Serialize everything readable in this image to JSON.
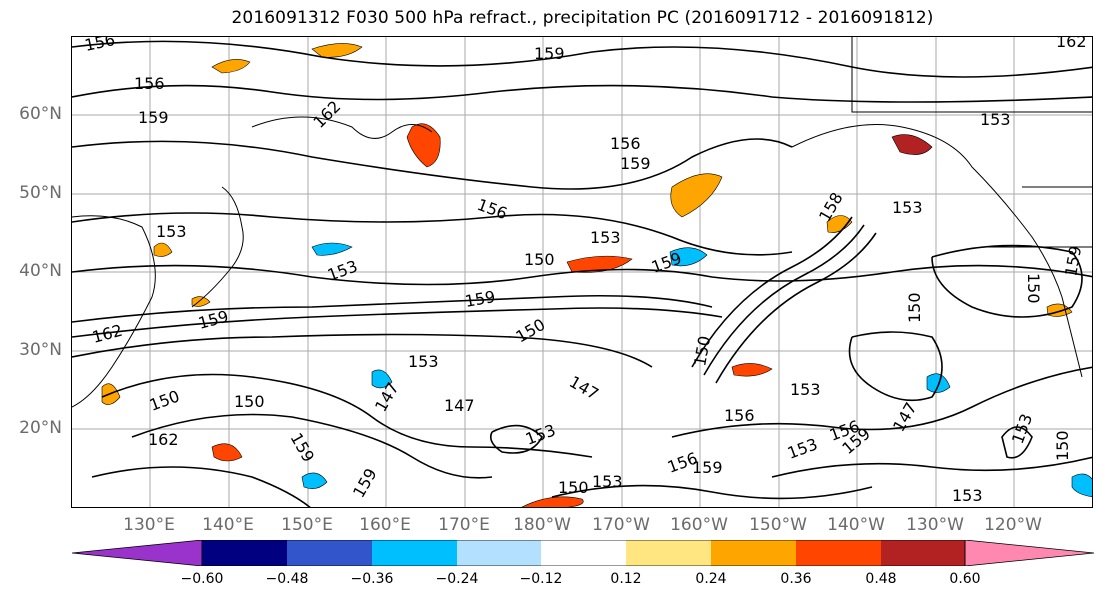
{
  "title": "2016091312 F030 500 hPa refract., precipitation PC (2016091712 - 2016091812)",
  "lat_labels": [
    "60°N",
    "50°N",
    "40°N",
    "30°N",
    "20°N"
  ],
  "lon_labels": [
    "130°E",
    "140°E",
    "150°E",
    "160°E",
    "170°E",
    "180°W",
    "170°W",
    "160°W",
    "150°W",
    "140°W",
    "130°W",
    "120°W"
  ],
  "colorbar": {
    "ticks": [
      "−0.60",
      "−0.48",
      "−0.36",
      "−0.24",
      "−0.12",
      "0.12",
      "0.24",
      "0.36",
      "0.48",
      "0.60"
    ],
    "colors": [
      "#9a33cc",
      "#000080",
      "#3355cc",
      "#00bfff",
      "#b3e0ff",
      "#ffffff",
      "#ffe680",
      "#ffa500",
      "#ff4500",
      "#b22222",
      "#ff88b0"
    ]
  },
  "contour_labels": [
    {
      "text": "156"
    },
    {
      "text": "156"
    },
    {
      "text": "159"
    },
    {
      "text": "162"
    },
    {
      "text": "159"
    },
    {
      "text": "156"
    },
    {
      "text": "159"
    },
    {
      "text": "156"
    },
    {
      "text": "153"
    },
    {
      "text": "153"
    },
    {
      "text": "150"
    },
    {
      "text": "159"
    },
    {
      "text": "153"
    },
    {
      "text": "153"
    },
    {
      "text": "159"
    },
    {
      "text": "162"
    },
    {
      "text": "159"
    },
    {
      "text": "150"
    },
    {
      "text": "153"
    },
    {
      "text": "158"
    },
    {
      "text": "150"
    },
    {
      "text": "147"
    },
    {
      "text": "150"
    },
    {
      "text": "153"
    },
    {
      "text": "147"
    },
    {
      "text": "162"
    },
    {
      "text": "150"
    },
    {
      "text": "147"
    },
    {
      "text": "159"
    },
    {
      "text": "153"
    },
    {
      "text": "156"
    },
    {
      "text": "159"
    },
    {
      "text": "156"
    },
    {
      "text": "153"
    },
    {
      "text": "153"
    },
    {
      "text": "150"
    },
    {
      "text": "147"
    },
    {
      "text": "156"
    },
    {
      "text": "159"
    },
    {
      "text": "150"
    },
    {
      "text": "153"
    },
    {
      "text": "153"
    },
    {
      "text": "150"
    },
    {
      "text": "159"
    },
    {
      "text": "153"
    },
    {
      "text": "162"
    },
    {
      "text": "159"
    },
    {
      "text": "150"
    }
  ]
}
